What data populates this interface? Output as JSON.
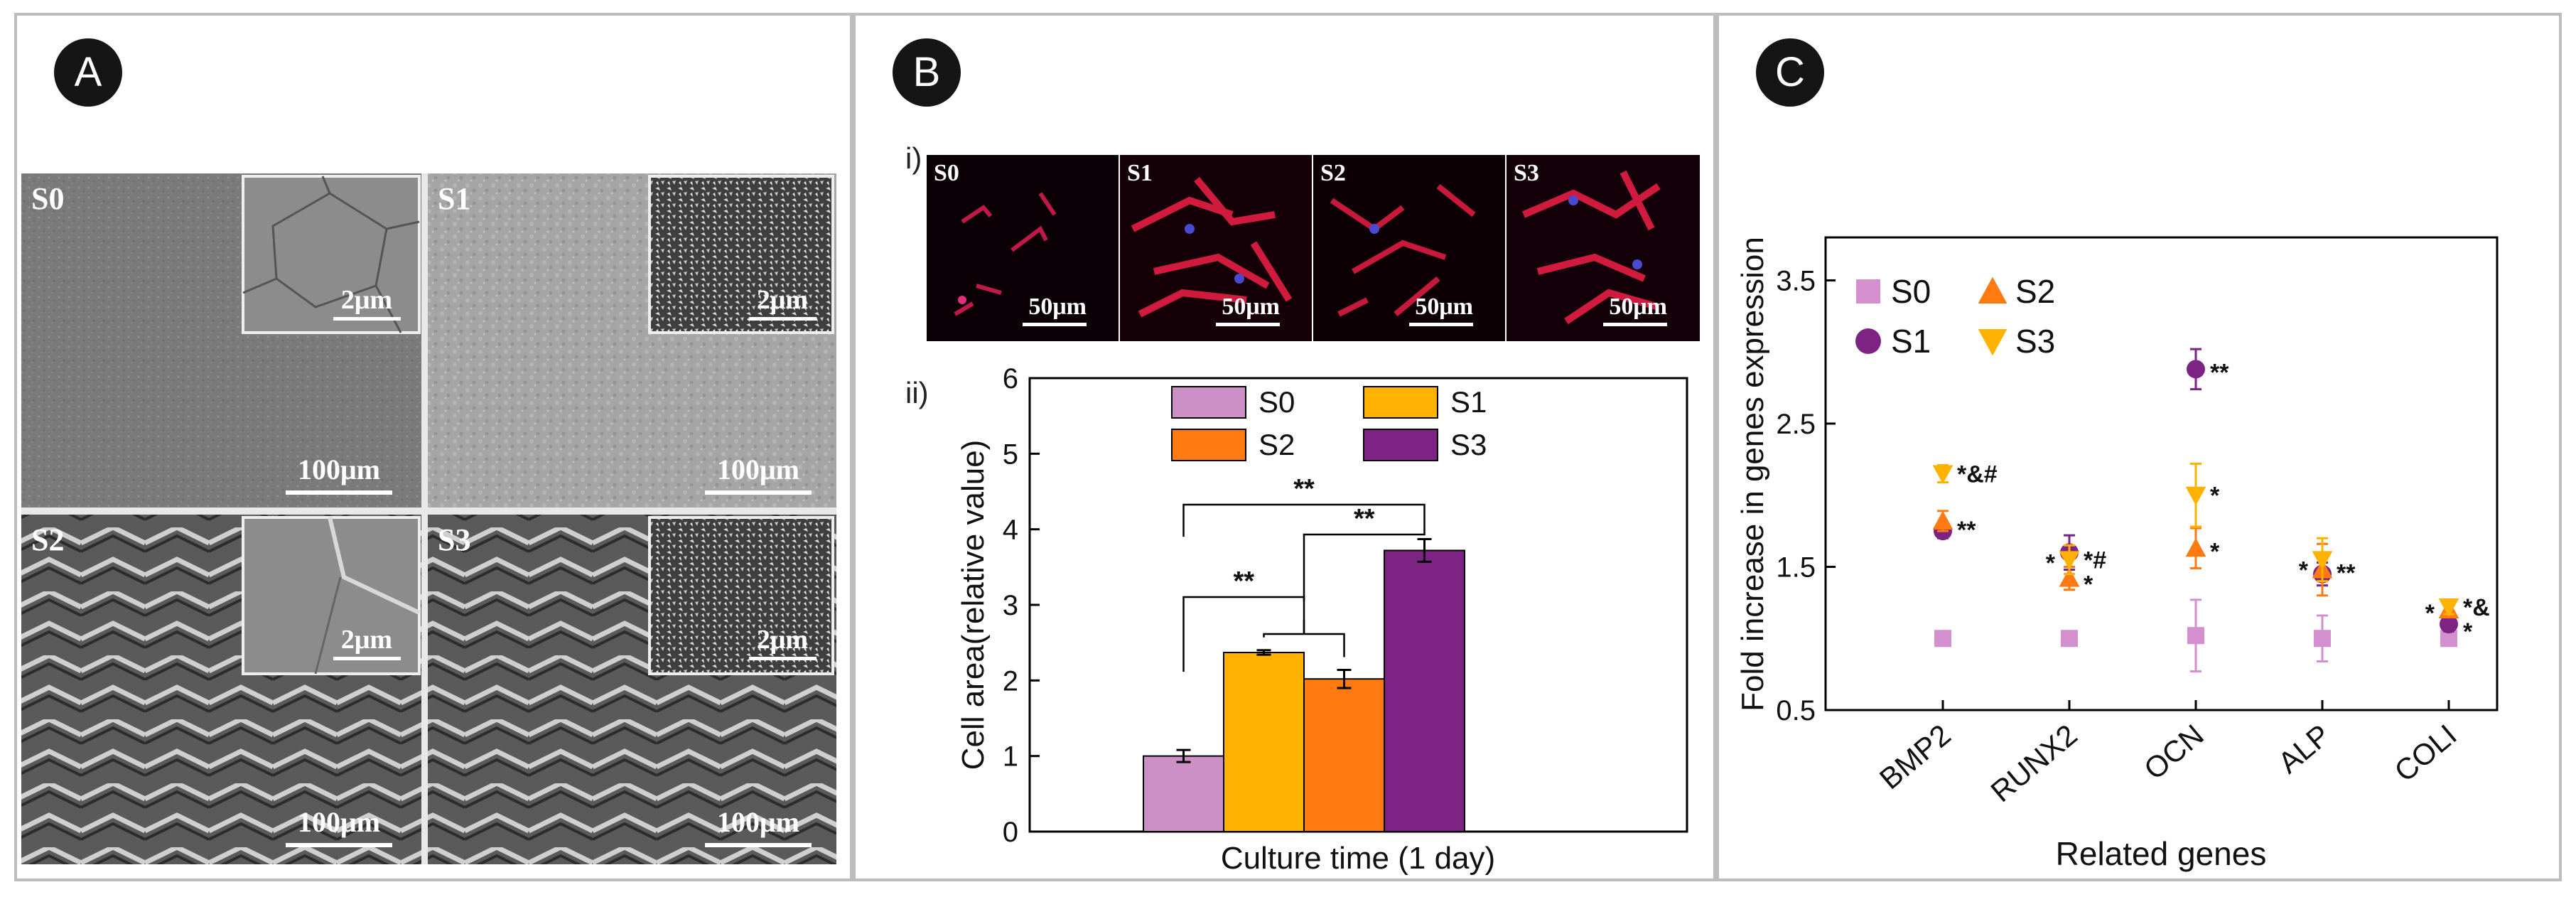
{
  "panels": {
    "a": {
      "badge": "A"
    },
    "b": {
      "badge": "B",
      "sub_i": "i)",
      "sub_ii": "ii)"
    },
    "c": {
      "badge": "C"
    }
  },
  "sem_tiles": [
    {
      "label": "S0",
      "scale": "100μm",
      "inset_scale": "2μm"
    },
    {
      "label": "S1",
      "scale": "100μm",
      "inset_scale": "2μm"
    },
    {
      "label": "S2",
      "scale": "100μm",
      "inset_scale": "2μm"
    },
    {
      "label": "S3",
      "scale": "100μm",
      "inset_scale": "2μm"
    }
  ],
  "cell_images": [
    {
      "label": "S0",
      "scale": "50μm"
    },
    {
      "label": "S1",
      "scale": "50μm"
    },
    {
      "label": "S2",
      "scale": "50μm"
    },
    {
      "label": "S3",
      "scale": "50μm"
    }
  ],
  "chart_data": [
    {
      "type": "bar",
      "xlabel": "Culture time (1 day)",
      "ylabel": "Cell area(relative value)",
      "ylim": [
        0,
        6
      ],
      "yticks": [
        "0",
        "1",
        "2",
        "3",
        "4",
        "5",
        "6"
      ],
      "categories": [
        "S0",
        "S1",
        "S2",
        "S3"
      ],
      "values": [
        1.0,
        2.37,
        2.02,
        3.72
      ],
      "errors": [
        0.08,
        0.03,
        0.12,
        0.15
      ],
      "colors": [
        "#cc8fc6",
        "#ffb300",
        "#ff7a10",
        "#7d2384"
      ],
      "legend": [
        {
          "name": "S0",
          "color": "#cc8fc6"
        },
        {
          "name": "S1",
          "color": "#ffb300"
        },
        {
          "name": "S2",
          "color": "#ff7a10"
        },
        {
          "name": "S3",
          "color": "#7d2384"
        }
      ],
      "significance": [
        {
          "label": "**"
        },
        {
          "label": "**"
        },
        {
          "label": "**"
        }
      ]
    },
    {
      "type": "scatter",
      "xlabel": "Related genes",
      "ylabel": "Fold increase in genes expression",
      "ylim": [
        0.5,
        3.8
      ],
      "yticks": [
        "0.5",
        "1.5",
        "2.5",
        "3.5"
      ],
      "categories": [
        "BMP2",
        "RUNX2",
        "OCN",
        "ALP",
        "COLI"
      ],
      "legend": [
        {
          "name": "S0",
          "color": "#d48fcf",
          "marker": "square"
        },
        {
          "name": "S2",
          "color": "#ff7a10",
          "marker": "triangle-up"
        },
        {
          "name": "S1",
          "color": "#7d2384",
          "marker": "circle"
        },
        {
          "name": "S3",
          "color": "#ffb300",
          "marker": "triangle-down"
        }
      ],
      "series": [
        {
          "name": "S0",
          "color": "#d48fcf",
          "marker": "square",
          "values": [
            1.0,
            1.0,
            1.02,
            1.0,
            1.0
          ],
          "errors": [
            0.02,
            0.05,
            0.25,
            0.16,
            0.03
          ]
        },
        {
          "name": "S1",
          "color": "#7d2384",
          "marker": "circle",
          "values": [
            1.75,
            1.6,
            2.88,
            1.45,
            1.1
          ],
          "errors": [
            0.05,
            0.12,
            0.14,
            0.08,
            0.05
          ]
        },
        {
          "name": "S2",
          "color": "#ff7a10",
          "marker": "triangle-up",
          "values": [
            1.82,
            1.42,
            1.63,
            1.48,
            1.2
          ],
          "errors": [
            0.07,
            0.08,
            0.14,
            0.18,
            0.04
          ]
        },
        {
          "name": "S3",
          "color": "#ffb300",
          "marker": "triangle-down",
          "values": [
            2.15,
            1.55,
            2.0,
            1.55,
            1.22
          ],
          "errors": [
            0.06,
            0.1,
            0.22,
            0.15,
            0.05
          ]
        }
      ],
      "annotations": [
        {
          "text": "*&#",
          "x": "BMP2",
          "y": 2.17
        },
        {
          "text": "**",
          "x": "BMP2",
          "y": 1.78
        },
        {
          "text": "*",
          "x": "RUNX2",
          "y": 1.55,
          "side": "left"
        },
        {
          "text": "*#",
          "x": "RUNX2",
          "y": 1.57
        },
        {
          "text": "*",
          "x": "RUNX2",
          "y": 1.4
        },
        {
          "text": "**",
          "x": "OCN",
          "y": 2.88
        },
        {
          "text": "*",
          "x": "OCN",
          "y": 2.02
        },
        {
          "text": "*",
          "x": "OCN",
          "y": 1.63
        },
        {
          "text": "*",
          "x": "ALP",
          "y": 1.5,
          "side": "left"
        },
        {
          "text": "**",
          "x": "ALP",
          "y": 1.48
        },
        {
          "text": "*",
          "x": "COLI",
          "y": 1.2,
          "side": "left"
        },
        {
          "text": "*&",
          "x": "COLI",
          "y": 1.24
        },
        {
          "text": "*",
          "x": "COLI",
          "y": 1.07
        }
      ]
    }
  ]
}
